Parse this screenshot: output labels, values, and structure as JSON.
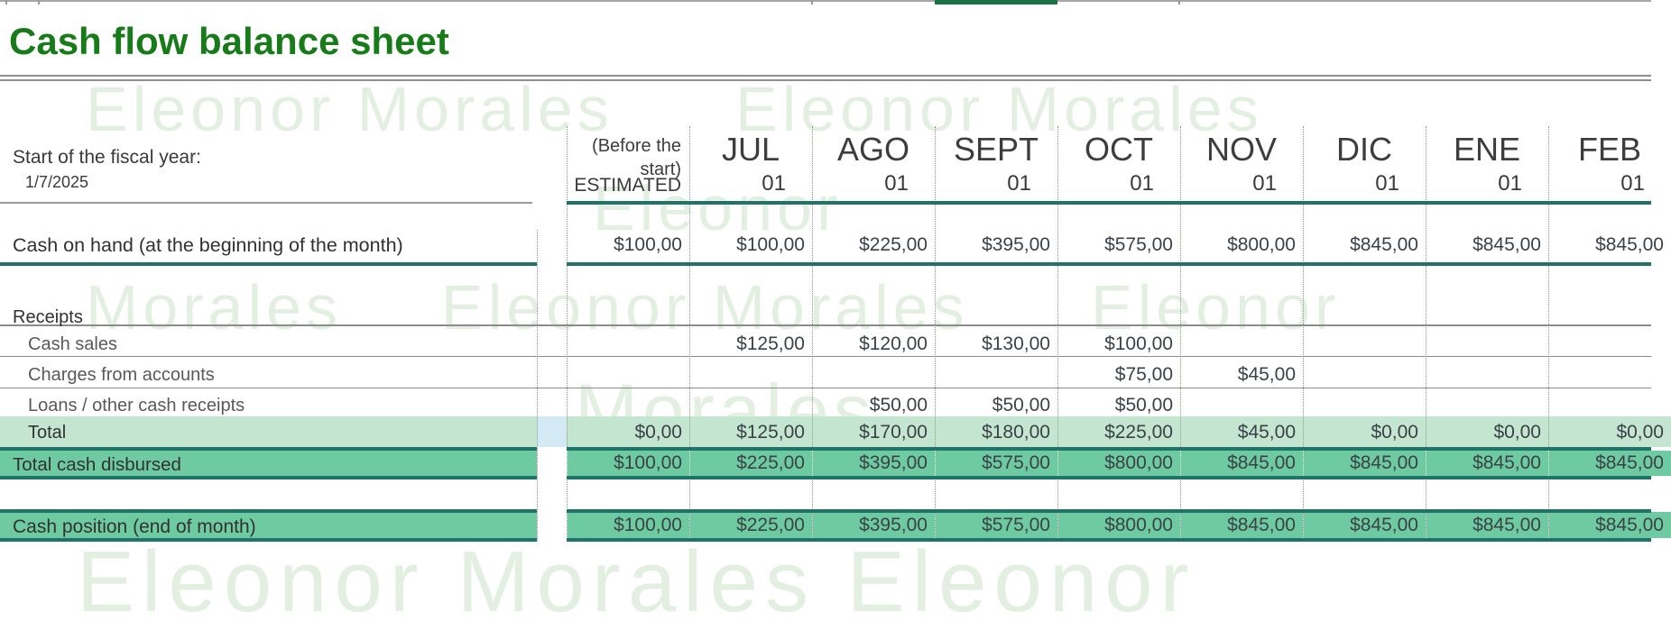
{
  "title": "Cash flow balance sheet",
  "fiscal": {
    "label": "Start of the fiscal year:",
    "date": "1/7/2025"
  },
  "columns": [
    {
      "label": "(Before the start)",
      "sub": "ESTIMATED"
    },
    {
      "label": "JUL",
      "sub": "01"
    },
    {
      "label": "AGO",
      "sub": "01"
    },
    {
      "label": "SEPT",
      "sub": "01"
    },
    {
      "label": "OCT",
      "sub": "01"
    },
    {
      "label": "NOV",
      "sub": "01"
    },
    {
      "label": "DIC",
      "sub": "01"
    },
    {
      "label": "ENE",
      "sub": "01"
    },
    {
      "label": "FEB",
      "sub": "01"
    }
  ],
  "rows": {
    "cash_on_hand": {
      "label": "Cash on hand (at the beginning of the month)",
      "values": [
        "$100,00",
        "$100,00",
        "$225,00",
        "$395,00",
        "$575,00",
        "$800,00",
        "$845,00",
        "$845,00",
        "$845,00"
      ]
    },
    "receipts_header": "Receipts",
    "cash_sales": {
      "label": "Cash sales",
      "values": [
        "",
        "$125,00",
        "$120,00",
        "$130,00",
        "$100,00",
        "",
        "",
        "",
        ""
      ]
    },
    "charges": {
      "label": "Charges from accounts",
      "values": [
        "",
        "",
        "",
        "",
        "$75,00",
        "$45,00",
        "",
        "",
        ""
      ]
    },
    "loans": {
      "label": "Loans / other cash receipts",
      "values": [
        "",
        "",
        "$50,00",
        "$50,00",
        "$50,00",
        "",
        "",
        "",
        ""
      ]
    },
    "total_receipts": {
      "label": "Total",
      "values": [
        "$0,00",
        "$125,00",
        "$170,00",
        "$180,00",
        "$225,00",
        "$45,00",
        "$0,00",
        "$0,00",
        "$0,00"
      ]
    },
    "total_disbursed": {
      "label": "Total cash disbursed",
      "values": [
        "$100,00",
        "$225,00",
        "$395,00",
        "$575,00",
        "$800,00",
        "$845,00",
        "$845,00",
        "$845,00",
        "$845,00"
      ]
    },
    "cash_position": {
      "label": "Cash position (end of month)",
      "values": [
        "$100,00",
        "$225,00",
        "$395,00",
        "$575,00",
        "$800,00",
        "$845,00",
        "$845,00",
        "$845,00",
        "$845,00"
      ]
    }
  },
  "watermark": {
    "text": "Eleonor Morales",
    "pieces": [
      "Eleonor Morales",
      "Eleonor Morales",
      "Eleonor",
      "Morales",
      "Eleonor Morales",
      "Eleonor",
      "Morales",
      "Eleonor Morales   Eleonor"
    ]
  },
  "colors": {
    "title_green": "#187b19",
    "selection_green": "#1e7145",
    "teal_border": "#1f7369",
    "row_light_green": "#c4e6d1",
    "row_green": "#6ecba1",
    "selection_blue_cell": "#d3e9f4",
    "watermark_green": "#e2efe1"
  }
}
